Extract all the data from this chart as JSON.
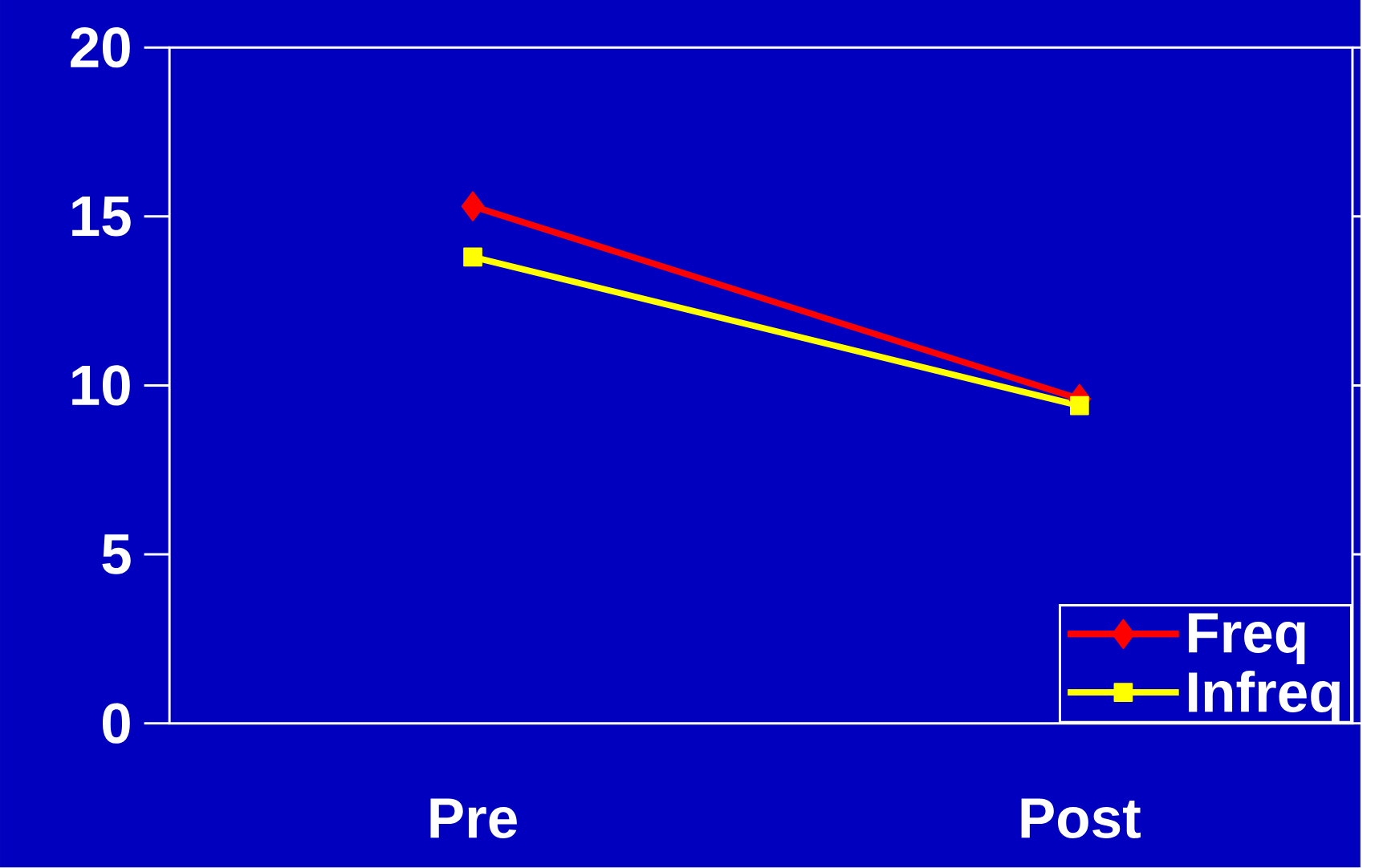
{
  "chart_data": {
    "type": "line",
    "categories": [
      "Pre",
      "Post"
    ],
    "series": [
      {
        "name": "Freq",
        "color": "#ff0000",
        "marker": "diamond",
        "values": [
          15.3,
          9.6
        ]
      },
      {
        "name": "Infreq",
        "color": "#ffff00",
        "marker": "square",
        "values": [
          13.8,
          9.4
        ]
      }
    ],
    "ylim": [
      0,
      20
    ],
    "yticks": [
      0,
      5,
      10,
      15,
      20
    ],
    "grid": false,
    "legend": "bottom right"
  }
}
